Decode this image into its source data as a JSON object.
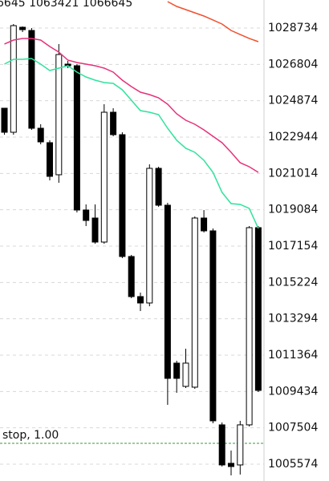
{
  "chart_data": {
    "type": "candlestick",
    "header_text": "6645 1063421 1066645",
    "ylim": [
      1004680,
      1030224
    ],
    "yticks": [
      1028734,
      1026804,
      1024874,
      1022944,
      1021014,
      1019084,
      1017154,
      1015224,
      1013294,
      1011364,
      1009434,
      1007504,
      1005574
    ],
    "grid": true,
    "up_color": "#ffffff",
    "down_color": "#000000",
    "candles": {
      "open": [
        1024477,
        1023200,
        1028777,
        1028606,
        1023413,
        1022647,
        1020944,
        1026818,
        1026733,
        1019071,
        1018645,
        1017368,
        1024264,
        1023072,
        1016602,
        1014473,
        1014133,
        1021284,
        1019326,
        1010940,
        1009705,
        1009663,
        1018645,
        1017964,
        1007662,
        1005619,
        1005533,
        1007662,
        1018134
      ],
      "high": [
        1024477,
        1028947,
        1028819,
        1028734,
        1023626,
        1022774,
        1027883,
        1026989,
        1026818,
        1019369,
        1019369,
        1024690,
        1024477,
        1023200,
        1016687,
        1014686,
        1021497,
        1021369,
        1019454,
        1011067,
        1011706,
        1018730,
        1019071,
        1018092,
        1007790,
        1006300,
        1007875,
        1018219,
        1018219
      ],
      "low": [
        1023072,
        1023072,
        1028521,
        1023328,
        1022561,
        1020646,
        1020518,
        1026606,
        1018943,
        1018219,
        1017283,
        1017283,
        1022987,
        1016516,
        1014388,
        1013707,
        1013962,
        1019241,
        1008726,
        1009365,
        1009620,
        1009578,
        1017879,
        1007747,
        1005448,
        1004980,
        1005023,
        1007577,
        1009407
      ],
      "close": [
        1023200,
        1028862,
        1028649,
        1023413,
        1022689,
        1020859,
        1027329,
        1026733,
        1019071,
        1018517,
        1017368,
        1024264,
        1023072,
        1016602,
        1014473,
        1014133,
        1021284,
        1019326,
        1010131,
        1010131,
        1010940,
        1018645,
        1017964,
        1007875,
        1005533,
        1005448,
        1007662,
        1018134,
        1009492
      ]
    },
    "lines": [
      {
        "color": "#2ee39b",
        "values": [
          1026818,
          1027074,
          1027074,
          1027116,
          1026818,
          1026478,
          1026606,
          1026733,
          1026393,
          1026137,
          1025967,
          1025839,
          1025797,
          1025456,
          1024903,
          1024349,
          1024264,
          1024136,
          1023413,
          1022774,
          1022349,
          1022136,
          1021710,
          1021071,
          1020007,
          1019411,
          1019369,
          1019156,
          1018092
        ]
      },
      {
        "color": "#e8307a",
        "values": [
          1027883,
          1028095,
          1028181,
          1028181,
          1028095,
          1027755,
          1027457,
          1027031,
          1026904,
          1026818,
          1026733,
          1026606,
          1026393,
          1025967,
          1025626,
          1025328,
          1025201,
          1025030,
          1024690,
          1024179,
          1023838,
          1023626,
          1023328,
          1022987,
          1022647,
          1022136,
          1021582,
          1021369,
          1021071
        ]
      },
      {
        "color": "#f0502e",
        "values": [
          null,
          null,
          null,
          null,
          null,
          null,
          null,
          null,
          null,
          null,
          null,
          null,
          null,
          null,
          null,
          null,
          null,
          null,
          1030139,
          1029883,
          1029713,
          1029543,
          1029373,
          1029160,
          1028947,
          1028606,
          1028393,
          1028181,
          1028010
        ]
      }
    ],
    "stop": {
      "label": "stop, 1.00",
      "value": 1006682,
      "color": "#3a9a3a"
    }
  }
}
